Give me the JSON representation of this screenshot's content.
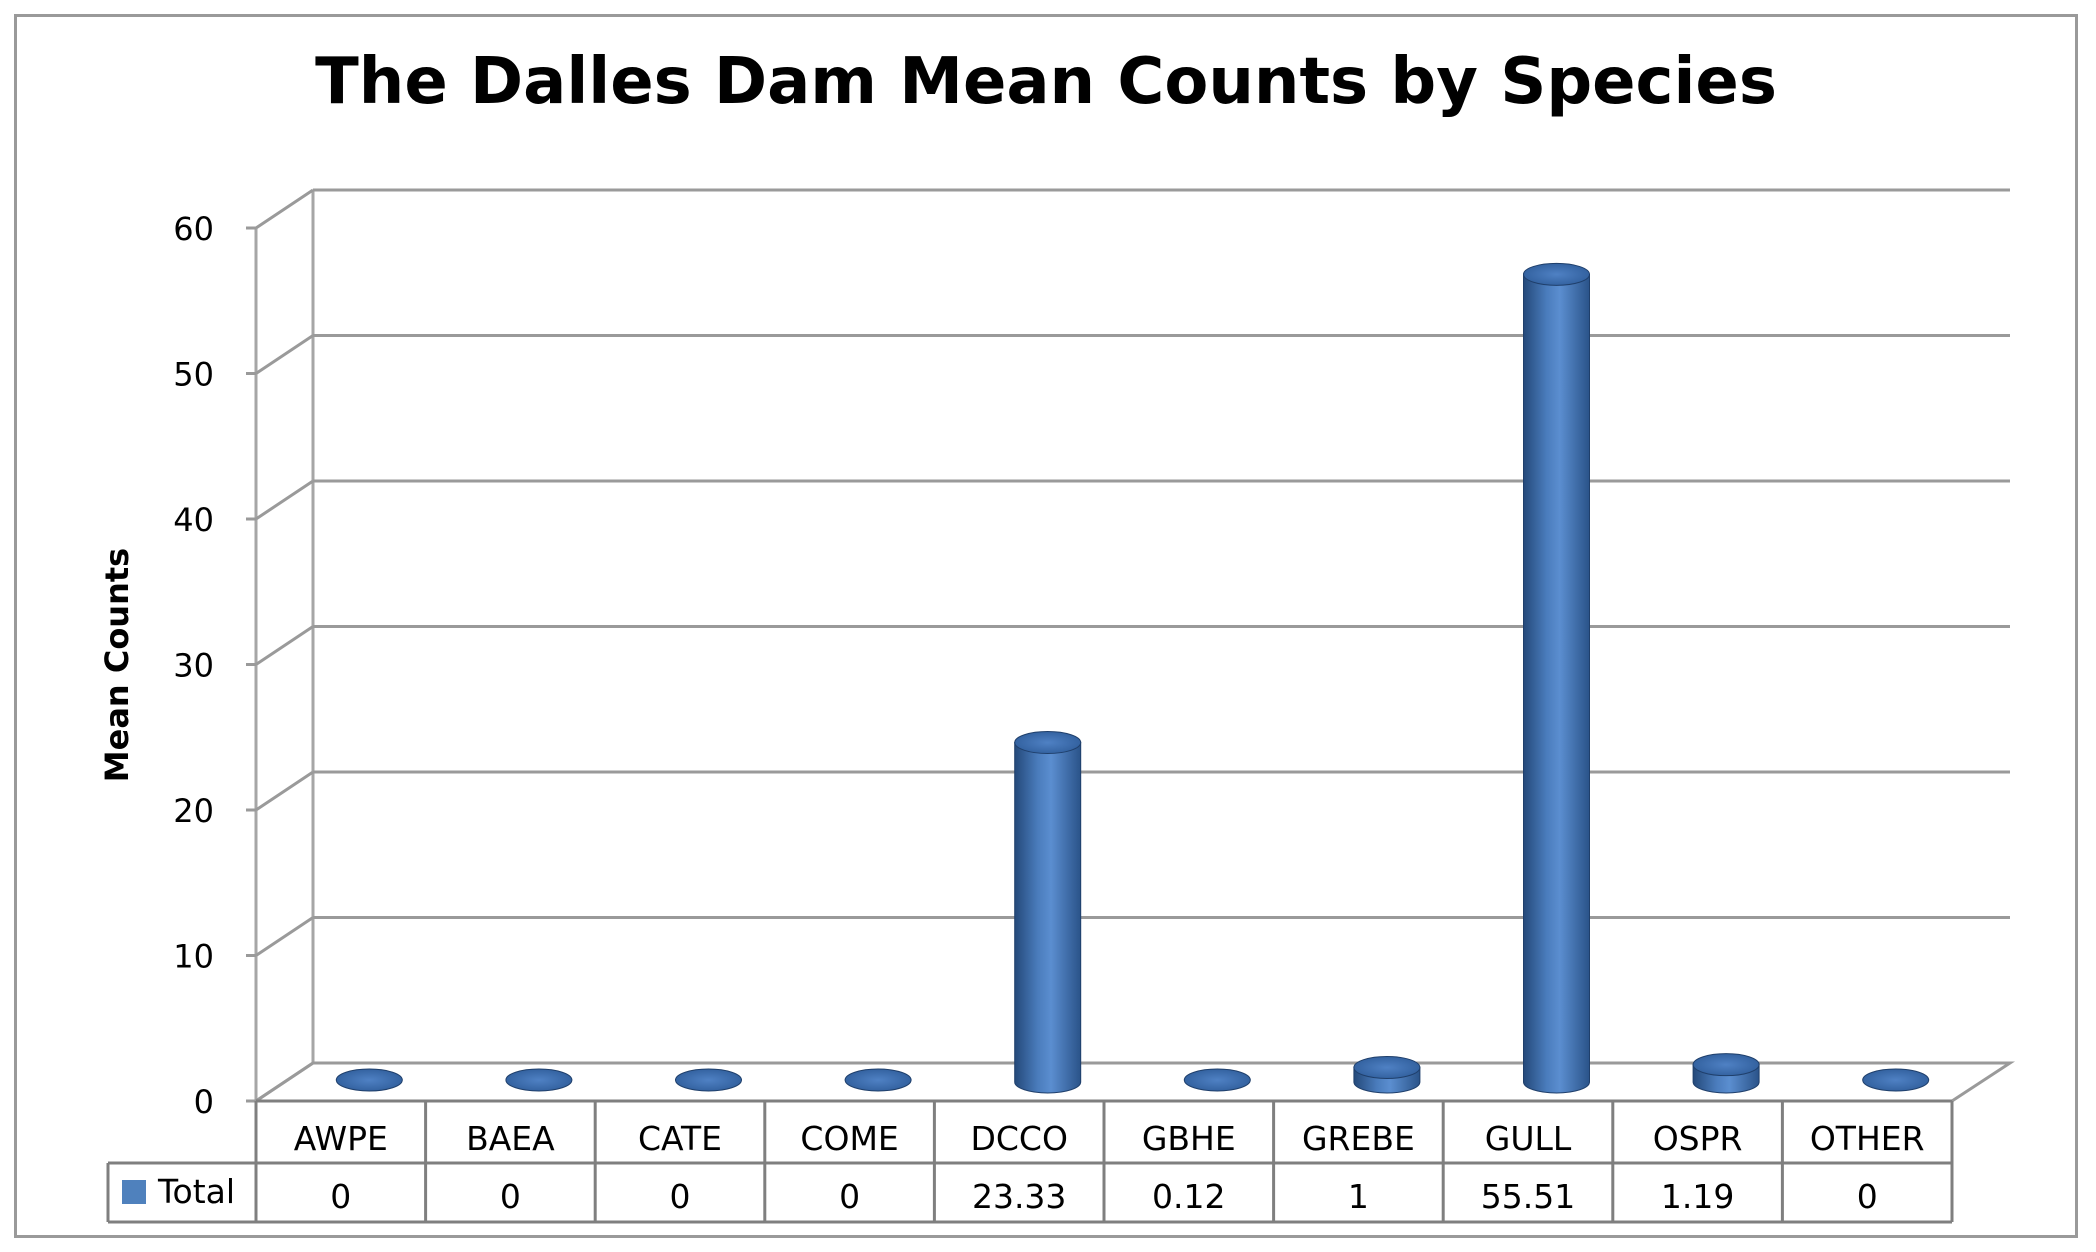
{
  "chart_data": {
    "type": "bar",
    "style": "3d-cylinder",
    "title": "The Dalles Dam Mean Counts by Species",
    "xlabel": "",
    "ylabel": "Mean Counts",
    "ylim": [
      0,
      60
    ],
    "yticks": [
      "0",
      "10",
      "20",
      "30",
      "40",
      "50",
      "60"
    ],
    "grid": true,
    "categories": [
      "AWPE",
      "BAEA",
      "CATE",
      "COME",
      "DCCO",
      "GBHE",
      "GREBE",
      "GULL",
      "OSPR",
      "OTHER"
    ],
    "series": [
      {
        "name": "Total",
        "color": "#4f81bd",
        "values": [
          0,
          0,
          0,
          0,
          23.33,
          0.12,
          1,
          55.51,
          1.19,
          0
        ],
        "labels": [
          "0",
          "0",
          "0",
          "0",
          "23.33",
          "0.12",
          "1",
          "55.51",
          "1.19",
          "0"
        ]
      }
    ],
    "legend": "data-table"
  }
}
